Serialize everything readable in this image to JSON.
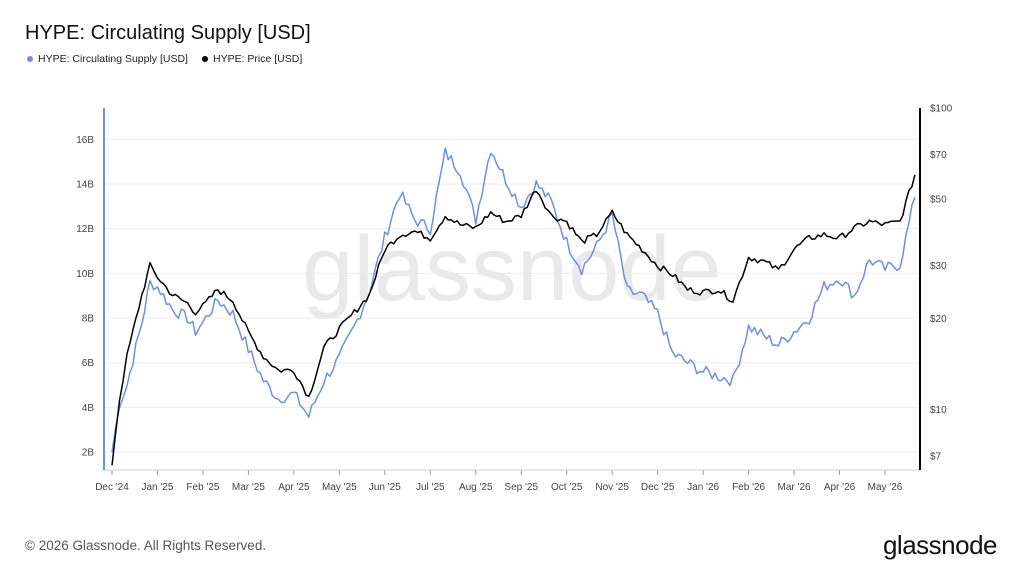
{
  "title": "HYPE: Circulating Supply [USD]",
  "footer": "© 2026 Glassnode. All Rights Reserved.",
  "logo": "glassnode",
  "watermark": "glassnode",
  "colors": {
    "supply": "#6f8fe6",
    "price": "#000000",
    "grid": "#ececec"
  },
  "chart_data": {
    "type": "line",
    "legend": [
      {
        "name": "HYPE: Circulating Supply [USD]",
        "color": "#6f8fe6"
      },
      {
        "name": "HYPE: Price [USD]",
        "color": "#000000"
      }
    ],
    "x_ticks": [
      "Dec '24",
      "Jan '25",
      "Feb '25",
      "Mar '25",
      "Apr '25",
      "May '25",
      "Jun '25",
      "Jul '25",
      "Aug '25",
      "Sep '25",
      "Oct '25",
      "Nov '25",
      "Dec '25",
      "Jan '26",
      "Feb '26",
      "Mar '26",
      "Apr '26",
      "May '26"
    ],
    "y_left": {
      "ticks": [
        2,
        4,
        6,
        8,
        10,
        12,
        14,
        16
      ],
      "tick_labels": [
        "2B",
        "4B",
        "6B",
        "8B",
        "10B",
        "12B",
        "14B",
        "16B"
      ],
      "range": [
        1.2,
        17.4
      ],
      "unit": "B USD"
    },
    "y_right": {
      "scale": "log",
      "ticks": [
        7,
        10,
        20,
        30,
        50,
        70,
        100
      ],
      "tick_labels": [
        "$7",
        "$10",
        "$20",
        "$30",
        "$50",
        "$70",
        "$100"
      ],
      "range": [
        6.3,
        100
      ]
    },
    "series": [
      {
        "name": "HYPE: Circulating Supply [USD]",
        "axis": "left",
        "points": [
          [
            "Dec '24",
            2.0
          ],
          [
            "Dec '24 +5d",
            4.2
          ],
          [
            "Dec '24 +10d",
            5.0
          ],
          [
            "Dec '24 +20d",
            7.8
          ],
          [
            "Jan '25 -5d",
            9.6
          ],
          [
            "Jan '25",
            9.4
          ],
          [
            "Jan '25 +10d",
            8.4
          ],
          [
            "Jan '25 +20d",
            8.0
          ],
          [
            "Feb '25 -5d",
            7.4
          ],
          [
            "Feb '25",
            7.8
          ],
          [
            "Feb '25 +10d",
            8.8
          ],
          [
            "Feb '25 +20d",
            8.2
          ],
          [
            "Mar '25",
            6.6
          ],
          [
            "Mar '25 +10d",
            5.2
          ],
          [
            "Mar '25 +20d",
            4.4
          ],
          [
            "Apr '25",
            4.6
          ],
          [
            "Apr '25 +10d",
            3.6
          ],
          [
            "Apr '25 +20d",
            5.2
          ],
          [
            "May '25",
            6.2
          ],
          [
            "May '25 +10d",
            7.6
          ],
          [
            "May '25 +20d",
            9.2
          ],
          [
            "Jun '25",
            11.6
          ],
          [
            "Jun '25 +10d",
            13.6
          ],
          [
            "Jun '25 +20d",
            12.4
          ],
          [
            "Jul '25",
            12.0
          ],
          [
            "Jul '25 +10d",
            15.4
          ],
          [
            "Jul '25 +20d",
            14.6
          ],
          [
            "Aug '25",
            12.4
          ],
          [
            "Aug '25 +10d",
            15.6
          ],
          [
            "Aug '25 +20d",
            14.2
          ],
          [
            "Sep '25",
            13.0
          ],
          [
            "Sep '25 +10d",
            14.0
          ],
          [
            "Sep '25 +20d",
            13.2
          ],
          [
            "Oct '25",
            11.4
          ],
          [
            "Oct '25 +10d",
            10.2
          ],
          [
            "Oct '25 +20d",
            11.2
          ],
          [
            "Nov '25",
            12.6
          ],
          [
            "Nov '25 +10d",
            9.2
          ],
          [
            "Nov '25 +20d",
            9.0
          ],
          [
            "Dec '25",
            8.2
          ],
          [
            "Dec '25 +10d",
            6.4
          ],
          [
            "Dec '25 +20d",
            6.0
          ],
          [
            "Jan '26",
            5.6
          ],
          [
            "Jan '26 +10d",
            5.4
          ],
          [
            "Jan '26 +20d",
            5.2
          ],
          [
            "Feb '26",
            7.6
          ],
          [
            "Feb '26 +10d",
            7.2
          ],
          [
            "Feb '26 +20d",
            6.8
          ],
          [
            "Mar '26",
            7.4
          ],
          [
            "Mar '26 +10d",
            8.0
          ],
          [
            "Mar '26 +20d",
            9.4
          ],
          [
            "Apr '26",
            9.8
          ],
          [
            "Apr '26 +10d",
            9.0
          ],
          [
            "Apr '26 +20d",
            10.6
          ],
          [
            "May '26",
            10.2
          ],
          [
            "May '26 +10d",
            10.4
          ],
          [
            "May '26 +20d",
            13.4
          ]
        ]
      },
      {
        "name": "HYPE: Price [USD]",
        "axis": "right",
        "points": [
          [
            "Dec '24",
            6.6
          ],
          [
            "Dec '24 +5d",
            10.8
          ],
          [
            "Dec '24 +10d",
            15.0
          ],
          [
            "Dec '24 +20d",
            24.0
          ],
          [
            "Jan '25 -5d",
            30.0
          ],
          [
            "Jan '25",
            27.5
          ],
          [
            "Jan '25 +10d",
            24.0
          ],
          [
            "Jan '25 +20d",
            22.5
          ],
          [
            "Feb '25 -5d",
            21.0
          ],
          [
            "Feb '25",
            22.0
          ],
          [
            "Feb '25 +10d",
            25.0
          ],
          [
            "Feb '25 +20d",
            23.0
          ],
          [
            "Mar '25",
            18.0
          ],
          [
            "Mar '25 +10d",
            15.0
          ],
          [
            "Mar '25 +20d",
            13.5
          ],
          [
            "Apr '25",
            13.5
          ],
          [
            "Apr '25 +10d",
            11.0
          ],
          [
            "Apr '25 +20d",
            16.0
          ],
          [
            "May '25",
            18.5
          ],
          [
            "May '25 +10d",
            21.0
          ],
          [
            "May '25 +20d",
            24.0
          ],
          [
            "Jun '25",
            34.0
          ],
          [
            "Jun '25 +10d",
            38.0
          ],
          [
            "Jun '25 +20d",
            39.0
          ],
          [
            "Jul '25",
            37.0
          ],
          [
            "Jul '25 +10d",
            44.0
          ],
          [
            "Jul '25 +20d",
            41.0
          ],
          [
            "Aug '25",
            40.0
          ],
          [
            "Aug '25 +10d",
            45.0
          ],
          [
            "Aug '25 +20d",
            42.0
          ],
          [
            "Sep '25",
            44.0
          ],
          [
            "Sep '25 +10d",
            54.0
          ],
          [
            "Sep '25 +20d",
            44.0
          ],
          [
            "Oct '25",
            42.0
          ],
          [
            "Oct '25 +10d",
            36.0
          ],
          [
            "Oct '25 +20d",
            38.0
          ],
          [
            "Nov '25",
            45.0
          ],
          [
            "Nov '25 +10d",
            38.0
          ],
          [
            "Nov '25 +20d",
            34.0
          ],
          [
            "Dec '25",
            30.0
          ],
          [
            "Dec '25 +10d",
            28.0
          ],
          [
            "Dec '25 +20d",
            25.0
          ],
          [
            "Jan '26",
            24.5
          ],
          [
            "Jan '26 +10d",
            25.0
          ],
          [
            "Jan '26 +20d",
            23.0
          ],
          [
            "Feb '26",
            32.0
          ],
          [
            "Feb '26 +10d",
            31.0
          ],
          [
            "Feb '26 +20d",
            29.0
          ],
          [
            "Mar '26",
            34.0
          ],
          [
            "Mar '26 +10d",
            37.0
          ],
          [
            "Mar '26 +20d",
            38.0
          ],
          [
            "Apr '26",
            37.0
          ],
          [
            "Apr '26 +10d",
            40.0
          ],
          [
            "Apr '26 +20d",
            42.0
          ],
          [
            "May '26",
            41.0
          ],
          [
            "May '26 +10d",
            42.0
          ],
          [
            "May '26 +20d",
            60.0
          ]
        ]
      }
    ]
  }
}
